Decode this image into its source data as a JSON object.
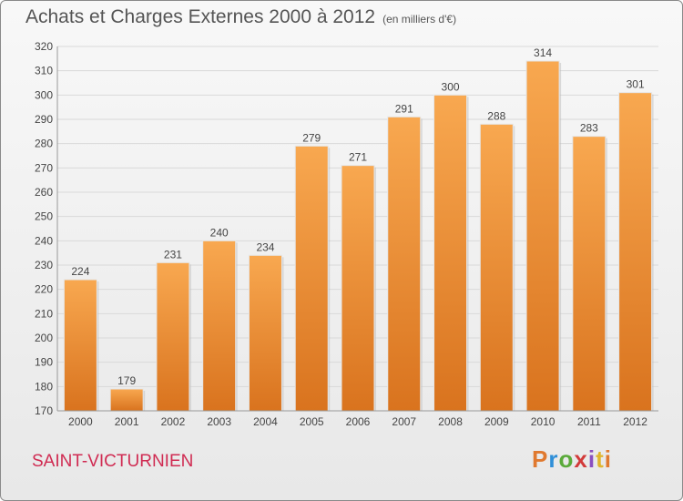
{
  "title": "Achats et Charges Externes 2000 à 2012",
  "subtitle": "(en milliers d'€)",
  "city": "SAINT-VICTURNIEN",
  "logo": [
    "Pro",
    "x",
    "iti"
  ],
  "colors": {
    "bar_top": "#f8a850",
    "bar_bottom": "#d9731e",
    "grid": "#d9d9d9"
  },
  "chart_data": {
    "type": "bar",
    "categories": [
      "2000",
      "2001",
      "2002",
      "2003",
      "2004",
      "2005",
      "2006",
      "2007",
      "2008",
      "2009",
      "2010",
      "2011",
      "2012"
    ],
    "values": [
      224,
      179,
      231,
      240,
      234,
      279,
      271,
      291,
      300,
      288,
      314,
      283,
      301
    ],
    "ylim": [
      170,
      320
    ],
    "yticks": [
      170,
      180,
      190,
      200,
      210,
      220,
      230,
      240,
      250,
      260,
      270,
      280,
      290,
      300,
      310,
      320
    ],
    "grid": true
  }
}
